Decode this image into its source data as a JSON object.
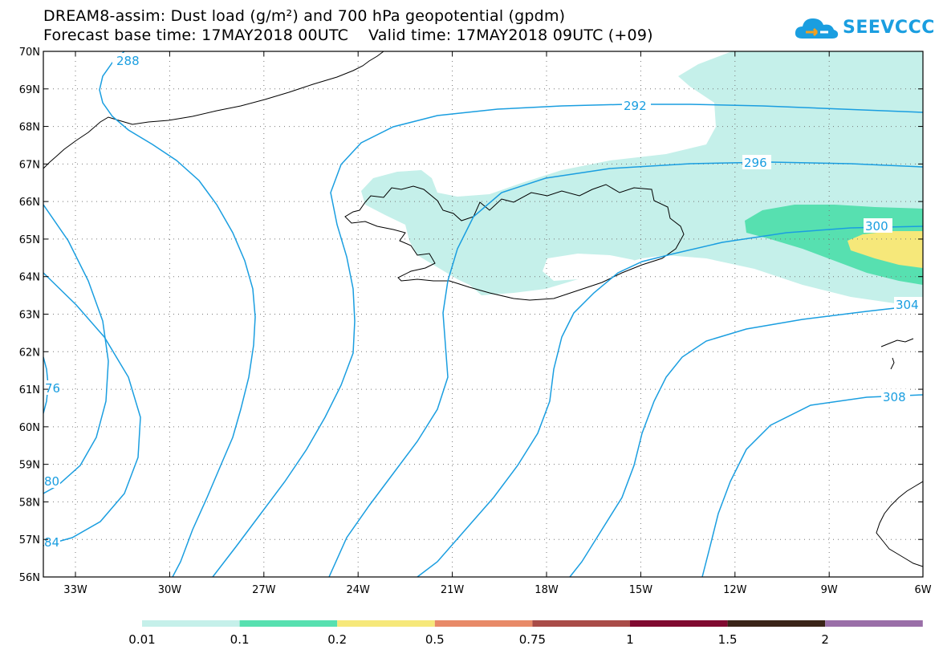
{
  "title": {
    "line1": "DREAM8-assim: Dust load (g/m²) and 700 hPa geopotential (gpdm)",
    "line2": "Forecast base time: 17MAY2018 00UTC    Valid time: 17MAY2018 09UTC (+09)"
  },
  "logo": {
    "text": "SEEVCCC",
    "icon": "cloud-logo-icon",
    "color": "#1a9ee0"
  },
  "map": {
    "lat_ticks": [
      "70N",
      "69N",
      "68N",
      "67N",
      "66N",
      "65N",
      "64N",
      "63N",
      "62N",
      "61N",
      "60N",
      "59N",
      "58N",
      "57N",
      "56N"
    ],
    "lon_ticks": [
      "33W",
      "30W",
      "27W",
      "24W",
      "21W",
      "18W",
      "15W",
      "12W",
      "9W",
      "6W"
    ],
    "contour_labels": [
      "288",
      "292",
      "296",
      "300",
      "304",
      "308",
      "76",
      "80",
      "84"
    ],
    "contour_color": "#1a9ee0",
    "coast_color": "#000000"
  },
  "colorbar": {
    "labels": [
      "0.01",
      "0.1",
      "0.2",
      "0.5",
      "0.75",
      "1",
      "1.5",
      "2"
    ],
    "colors": [
      "#c5f0ea",
      "#57e0b0",
      "#f6e87a",
      "#e88a68",
      "#a94c48",
      "#800a30",
      "#3a2418",
      "#9a6fa8"
    ]
  }
}
